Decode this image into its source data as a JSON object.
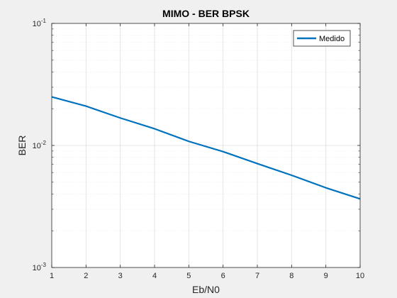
{
  "chart_data": {
    "type": "line",
    "title": "MIMO - BER BPSK",
    "xlabel": "Eb/N0",
    "ylabel": "BER",
    "yscale": "log",
    "xlim": [
      1,
      10
    ],
    "ylim": [
      0.001,
      0.1
    ],
    "x_ticks": [
      "1",
      "2",
      "3",
      "4",
      "5",
      "6",
      "7",
      "8",
      "9",
      "10"
    ],
    "y_ticks": [
      {
        "base": "10",
        "exp": "-1"
      },
      {
        "base": "10",
        "exp": "-2"
      },
      {
        "base": "10",
        "exp": "-3"
      }
    ],
    "grid": true,
    "legend_position": "top-right",
    "series": [
      {
        "name": "Medido",
        "color": "#0072bd",
        "x": [
          1,
          2,
          3,
          4,
          5,
          6,
          7,
          8,
          9,
          10
        ],
        "y": [
          0.025,
          0.021,
          0.0168,
          0.0137,
          0.0108,
          0.0089,
          0.0071,
          0.0057,
          0.0045,
          0.00365
        ]
      }
    ]
  }
}
